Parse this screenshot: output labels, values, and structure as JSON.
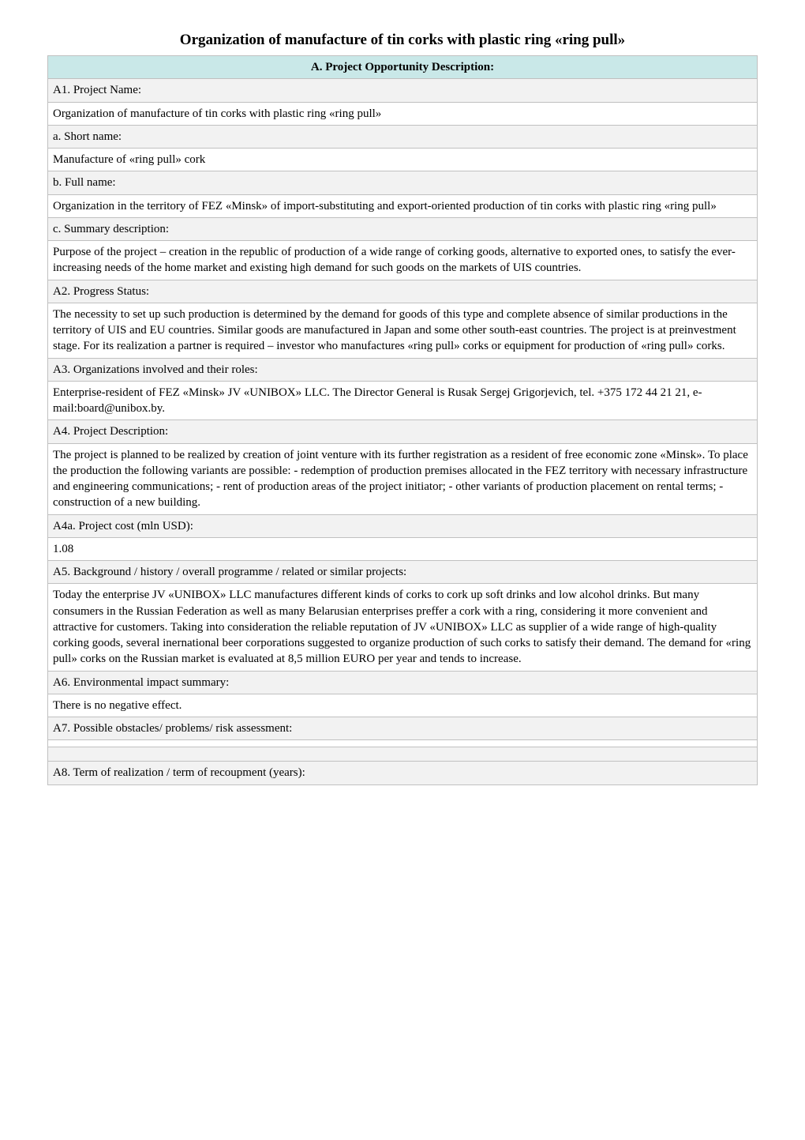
{
  "title": "Organization of manufacture of tin corks with plastic ring «ring pull»",
  "sectionA": {
    "header": "A.  Project Opportunity Description:",
    "a1": {
      "label": "A1.  Project Name:",
      "value": "  Organization of manufacture of tin corks with plastic ring «ring pull»",
      "a": {
        "label": "  a. Short name:",
        "value": "  Manufacture of «ring pull» cork"
      },
      "b": {
        "label": "  b. Full name:",
        "value": "  Organization in the territory of FEZ «Minsk» of import-substituting and export-oriented production of tin corks with plastic ring «ring pull»"
      },
      "c": {
        "label": "  c. Summary description:",
        "value": "  Purpose of the project – creation in the republic of production of a wide range of corking goods, alternative to exported ones, to satisfy the ever-increasing needs of the home market and existing high demand for such goods on the markets of UIS countries."
      }
    },
    "a2": {
      "label": "  A2. Progress Status:",
      "value": "  The necessity to set up such production is determined by the demand for goods of this type and complete absence of similar productions in the territory of UIS and EU countries. Similar goods are manufactured in Japan and some other south-east countries. The project is at preinvestment stage. For its realization a partner is required – investor who manufactures «ring pull» corks or equipment for production of «ring pull» corks."
    },
    "a3": {
      "label": "  A3. Organizations involved and their roles:",
      "value": "  Enterprise-resident of FEZ «Minsk» JV «UNIBOX» LLC. The Director General is Rusak Sergej Grigorjevich, tel. +375 172 44 21 21, e-mail:board@unibox.by."
    },
    "a4": {
      "label": "  A4. Project Description:",
      "value": "  The project is planned to be realized by creation of joint venture with its further registration as a resident of free economic zone «Minsk». To place the production the following variants are possible: - redemption of production premises allocated in the FEZ territory with necessary infrastructure and engineering communications; - rent of production areas of the project initiator; - other variants of production placement on rental terms; - construction of a new building.",
      "a": {
        "label": "  A4a. Project cost (mln USD):",
        "value": " 1.08"
      }
    },
    "a5": {
      "label": "  A5.  Background / history / overall programme / related or similar projects:",
      "value": "  Today the enterprise JV «UNIBOX» LLC manufactures different kinds of corks to cork up soft drinks and low alcohol drinks. But many consumers in the Russian Federation as well as many Belarusian enterprises preffer a cork with a ring, considering it more convenient and attractive for customers. Taking into consideration the reliable reputation of JV «UNIBOX» LLC as supplier of a wide range of high-quality corking goods, several inernational beer corporations suggested to organize production of such corks to satisfy their demand. The demand for «ring pull» corks on the Russian market is evaluated at 8,5 million EURO per year and tends to increase."
    },
    "a6": {
      "label": "  A6.  Environmental impact summary:",
      "value": "  There is no negative effect."
    },
    "a7": {
      "label": "  A7.  Possible obstacles/ problems/ risk assessment:",
      "value": " "
    },
    "a8": {
      "label": "  A8.  Term of realization / term of recoupment (years):"
    }
  }
}
